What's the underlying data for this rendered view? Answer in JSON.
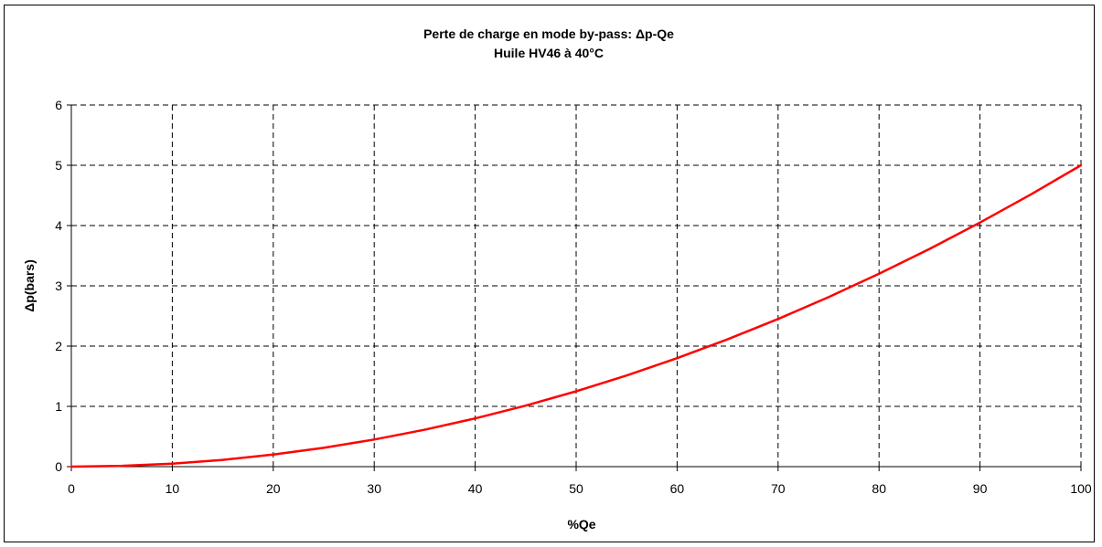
{
  "chart_data": {
    "type": "line",
    "title": "Perte de charge en mode by-pass: Δp-Qe",
    "subtitle": "Huile HV46 à 40°C",
    "xlabel": "%Qe",
    "ylabel": "Δp(bars)",
    "xlim": [
      0,
      100
    ],
    "ylim": [
      0,
      6
    ],
    "x_ticks": [
      "0",
      "10",
      "20",
      "30",
      "40",
      "50",
      "60",
      "70",
      "80",
      "90",
      "100"
    ],
    "y_ticks": [
      "0",
      "1",
      "2",
      "3",
      "4",
      "5",
      "6"
    ],
    "grid": true,
    "grid_style": "dashed",
    "legend": "none",
    "series_color": "#ff0000",
    "series": [
      {
        "x": [
          0,
          5,
          10,
          15,
          20,
          25,
          30,
          35,
          40,
          45,
          50,
          55,
          60,
          65,
          70,
          75,
          80,
          85,
          90,
          95,
          100
        ],
        "y": [
          0,
          0.0125,
          0.05,
          0.1125,
          0.2,
          0.3125,
          0.45,
          0.6125,
          0.8,
          1.0125,
          1.25,
          1.5125,
          1.8,
          2.1125,
          2.45,
          2.8125,
          3.2,
          3.6125,
          4.05,
          4.5125,
          5.0
        ]
      }
    ]
  }
}
